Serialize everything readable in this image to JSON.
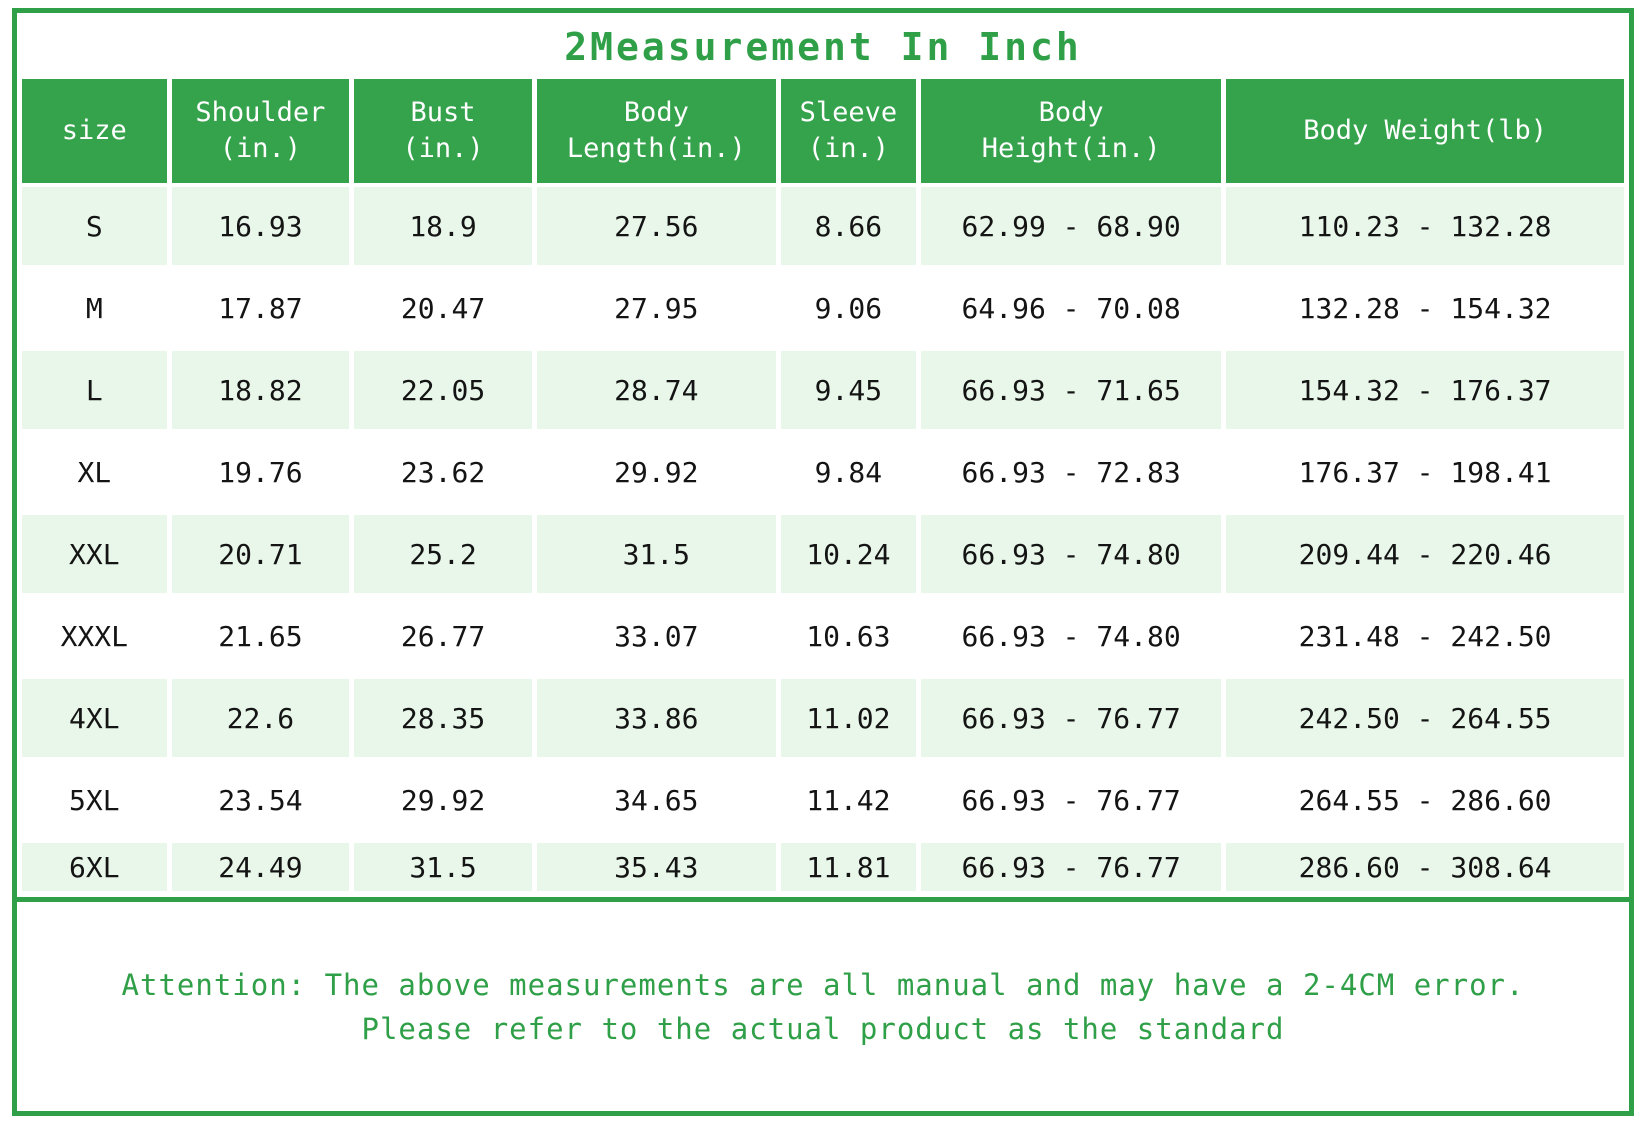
{
  "title": "2Measurement In Inch",
  "colors": {
    "green_border": "#2f9f48",
    "green_header": "#35a24c",
    "green_text": "#2f9f48",
    "row_alt": "#e9f7ea",
    "row_plain": "#ffffff",
    "cell_text": "#141414",
    "header_text": "#ffffff"
  },
  "table": {
    "headers": [
      [
        "size"
      ],
      [
        "Shoulder",
        "(in.)"
      ],
      [
        "Bust",
        "(in.)"
      ],
      [
        "Body",
        "Length(in.)"
      ],
      [
        "Sleeve",
        "(in.)"
      ],
      [
        "Body",
        "Height(in.)"
      ],
      [
        "Body Weight(lb)"
      ]
    ],
    "rows": [
      [
        "S",
        "16.93",
        "18.9",
        "27.56",
        "8.66",
        "62.99 - 68.90",
        "110.23 - 132.28"
      ],
      [
        "M",
        "17.87",
        "20.47",
        "27.95",
        "9.06",
        "64.96 - 70.08",
        "132.28 - 154.32"
      ],
      [
        "L",
        "18.82",
        "22.05",
        "28.74",
        "9.45",
        "66.93 - 71.65",
        "154.32 - 176.37"
      ],
      [
        "XL",
        "19.76",
        "23.62",
        "29.92",
        "9.84",
        "66.93 - 72.83",
        "176.37 - 198.41"
      ],
      [
        "XXL",
        "20.71",
        "25.2",
        "31.5",
        "10.24",
        "66.93 - 74.80",
        "209.44 - 220.46"
      ],
      [
        "XXXL",
        "21.65",
        "26.77",
        "33.07",
        "10.63",
        "66.93 - 74.80",
        "231.48 - 242.50"
      ],
      [
        "4XL",
        "22.6",
        "28.35",
        "33.86",
        "11.02",
        "66.93 - 76.77",
        "242.50 - 264.55"
      ],
      [
        "5XL",
        "23.54",
        "29.92",
        "34.65",
        "11.42",
        "66.93 - 76.77",
        "264.55 - 286.60"
      ],
      [
        "6XL",
        "24.49",
        "31.5",
        "35.43",
        "11.81",
        "66.93 - 76.77",
        "286.60 - 308.64"
      ]
    ]
  },
  "footer": {
    "line1": "Attention: The above measurements are all manual and may have a 2-4CM error.",
    "line2": "Please refer to the actual product as the standard"
  },
  "chart_data": {
    "type": "table",
    "title": "2Measurement In Inch",
    "columns": [
      "size",
      "Shoulder (in.)",
      "Bust (in.)",
      "Body Length(in.)",
      "Sleeve (in.)",
      "Body Height(in.)",
      "Body Weight(lb)"
    ],
    "rows": [
      [
        "S",
        16.93,
        18.9,
        27.56,
        8.66,
        "62.99 - 68.90",
        "110.23 - 132.28"
      ],
      [
        "M",
        17.87,
        20.47,
        27.95,
        9.06,
        "64.96 - 70.08",
        "132.28 - 154.32"
      ],
      [
        "L",
        18.82,
        22.05,
        28.74,
        9.45,
        "66.93 - 71.65",
        "154.32 - 176.37"
      ],
      [
        "XL",
        19.76,
        23.62,
        29.92,
        9.84,
        "66.93 - 72.83",
        "176.37 - 198.41"
      ],
      [
        "XXL",
        20.71,
        25.2,
        31.5,
        10.24,
        "66.93 - 74.80",
        "209.44 - 220.46"
      ],
      [
        "XXXL",
        21.65,
        26.77,
        33.07,
        10.63,
        "66.93 - 74.80",
        "231.48 - 242.50"
      ],
      [
        "4XL",
        22.6,
        28.35,
        33.86,
        11.02,
        "66.93 - 76.77",
        "242.50 - 264.55"
      ],
      [
        "5XL",
        23.54,
        29.92,
        34.65,
        11.42,
        "66.93 - 76.77",
        "264.55 - 286.60"
      ],
      [
        "6XL",
        24.49,
        31.5,
        35.43,
        11.81,
        "66.93 - 76.77",
        "286.60 - 308.64"
      ]
    ]
  }
}
